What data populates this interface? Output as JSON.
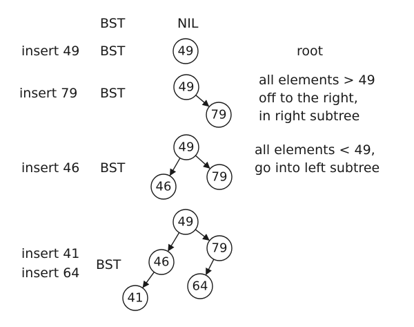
{
  "header": {
    "bst_label": "BST",
    "nil_label": "NIL"
  },
  "rows": [
    {
      "op_lines": [
        "insert 49"
      ],
      "bst": "BST",
      "note_lines": [
        "root"
      ]
    },
    {
      "op_lines": [
        "insert 79"
      ],
      "bst": "BST",
      "note_lines": [
        "all elements > 49",
        "off to the right,",
        "in right subtree"
      ]
    },
    {
      "op_lines": [
        "insert 46"
      ],
      "bst": "BST",
      "note_lines": [
        "all elements < 49,",
        "go into left subtree"
      ]
    },
    {
      "op_lines": [
        "insert 41",
        "insert 64"
      ],
      "bst": "BST",
      "note_lines": []
    }
  ],
  "trees": [
    {
      "nodes": [
        "49"
      ],
      "edges": []
    },
    {
      "nodes": [
        "49",
        "79"
      ],
      "edges": [
        [
          0,
          1
        ]
      ]
    },
    {
      "nodes": [
        "49",
        "46",
        "79"
      ],
      "edges": [
        [
          0,
          1
        ],
        [
          0,
          2
        ]
      ]
    },
    {
      "nodes": [
        "49",
        "46",
        "79",
        "41",
        "64"
      ],
      "edges": [
        [
          0,
          1
        ],
        [
          0,
          2
        ],
        [
          1,
          3
        ],
        [
          2,
          4
        ]
      ]
    }
  ]
}
